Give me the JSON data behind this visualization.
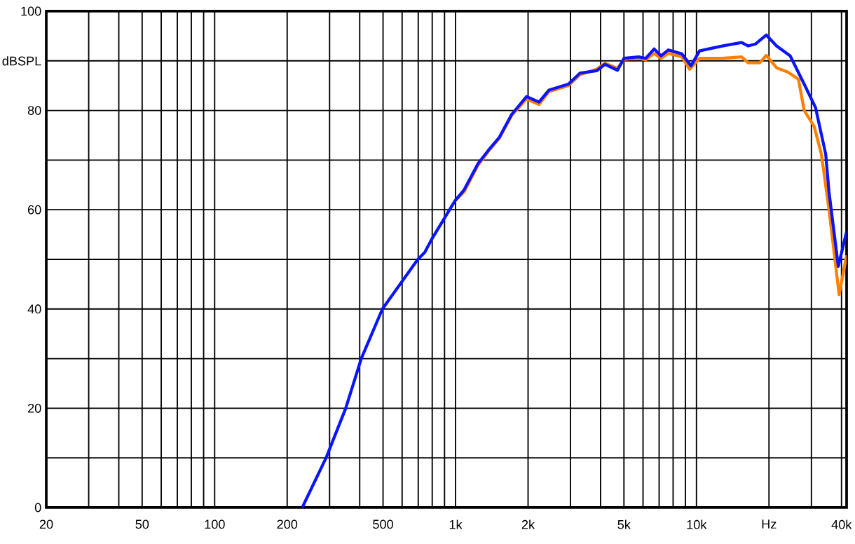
{
  "chart_data": {
    "type": "line",
    "log": "x",
    "grid": true,
    "xlim": [
      20,
      42000
    ],
    "xticks": [
      {
        "value": 20,
        "label": "20"
      },
      {
        "value": 30,
        "label": null
      },
      {
        "value": 40,
        "label": null
      },
      {
        "value": 50,
        "label": "50"
      },
      {
        "value": 60,
        "label": null
      },
      {
        "value": 70,
        "label": null
      },
      {
        "value": 80,
        "label": null
      },
      {
        "value": 90,
        "label": null
      },
      {
        "value": 100,
        "label": "100"
      },
      {
        "value": 200,
        "label": "200"
      },
      {
        "value": 300,
        "label": null
      },
      {
        "value": 400,
        "label": null
      },
      {
        "value": 500,
        "label": "500"
      },
      {
        "value": 600,
        "label": null
      },
      {
        "value": 700,
        "label": null
      },
      {
        "value": 800,
        "label": null
      },
      {
        "value": 900,
        "label": null
      },
      {
        "value": 1000,
        "label": "1k"
      },
      {
        "value": 2000,
        "label": "2k"
      },
      {
        "value": 3000,
        "label": null
      },
      {
        "value": 4000,
        "label": null
      },
      {
        "value": 5000,
        "label": "5k"
      },
      {
        "value": 6000,
        "label": null
      },
      {
        "value": 7000,
        "label": null
      },
      {
        "value": 8000,
        "label": null
      },
      {
        "value": 9000,
        "label": null
      },
      {
        "value": 10000,
        "label": "10k"
      },
      {
        "value": 20000,
        "label": "Hz"
      },
      {
        "value": 30000,
        "label": null
      },
      {
        "value": 40000,
        "label": "40k"
      }
    ],
    "ylim": [
      0,
      100
    ],
    "yticks": [
      0,
      {
        "value": 10,
        "label": null
      },
      20,
      {
        "value": 30,
        "label": null
      },
      40,
      {
        "value": 50,
        "label": null
      },
      60,
      {
        "value": 70,
        "label": null
      },
      80,
      {
        "value": 90,
        "label": "dBSPL"
      },
      100
    ],
    "series": [
      {
        "color": "#ff8000",
        "x": [
          995,
          1085,
          1240,
          1370,
          1520,
          1710,
          1970,
          2220,
          2440,
          2940,
          3280,
          3850,
          4170,
          4700,
          5000,
          5760,
          6160,
          6670,
          7130,
          7650,
          8700,
          9370,
          10300,
          12800,
          15400,
          16400,
          18300,
          19500,
          21500,
          24000,
          26500,
          28000,
          30800,
          33000,
          35500,
          39100,
          42000
        ],
        "values": [
          61.8,
          63.6,
          69,
          71.8,
          74.4,
          79,
          82.3,
          81.2,
          83.8,
          85,
          87.2,
          88.3,
          89.5,
          88.5,
          90.3,
          90.5,
          90.2,
          91.5,
          90.5,
          91.5,
          90.8,
          88.3,
          90.5,
          90.5,
          90.8,
          89.6,
          89.6,
          91.1,
          88.6,
          87.7,
          86.3,
          80,
          76.8,
          71.2,
          60,
          42.9,
          50.8
        ]
      },
      {
        "color": "#0a14ff",
        "x": [
          231,
          290,
          350,
          406,
          497,
          697,
          745,
          795,
          995,
          1085,
          1240,
          1370,
          1520,
          1710,
          1970,
          2220,
          2440,
          2940,
          3280,
          3850,
          4170,
          4700,
          5000,
          5760,
          6160,
          6670,
          7130,
          7650,
          8700,
          9490,
          10300,
          12800,
          15400,
          16400,
          17600,
          19500,
          21500,
          24500,
          28000,
          31200,
          34400,
          35500,
          38800,
          42000
        ],
        "values": [
          0,
          10,
          20,
          30,
          40,
          50,
          51.4,
          54,
          61.8,
          64,
          69.3,
          72,
          74.6,
          79.2,
          82.8,
          81.7,
          84.1,
          85.3,
          87.5,
          88,
          89.3,
          88.1,
          90.5,
          90.8,
          90.5,
          92.4,
          91,
          92.2,
          91.4,
          89,
          92,
          93,
          93.7,
          93,
          93.4,
          95.2,
          93,
          91,
          85.3,
          80.6,
          71.2,
          63.6,
          48.6,
          55.6
        ]
      }
    ]
  }
}
